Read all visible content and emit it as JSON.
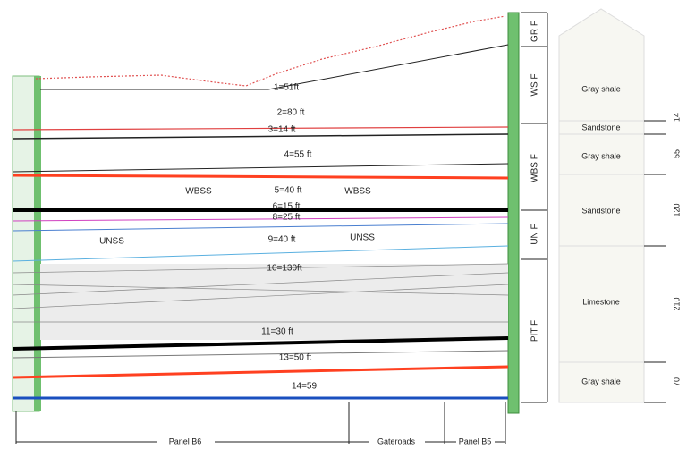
{
  "section": {
    "layers": [
      "1=51ft",
      "2=80 ft",
      "3=14 ft",
      "4=55 ft",
      "5=40 ft",
      "6=15 ft",
      "8=25 ft",
      "9=40 ft",
      "10=130ft",
      "11=30 ft",
      "13=50 ft",
      "14=59"
    ],
    "units": [
      "WBSS",
      "WBSS",
      "UNSS",
      "UNSS"
    ],
    "formations": [
      "GR F",
      "WS F",
      "WBS F",
      "UN F",
      "PIT F"
    ],
    "panels": [
      "Panel B6",
      "Gateroads",
      "Panel B5"
    ]
  },
  "column": {
    "lithology": [
      "Gray shale",
      "Sandstone",
      "Gray shale",
      "Sandstone",
      "Limestone",
      "Gray shale"
    ],
    "thickness": [
      "14",
      "55",
      "120",
      "210",
      "70"
    ]
  }
}
